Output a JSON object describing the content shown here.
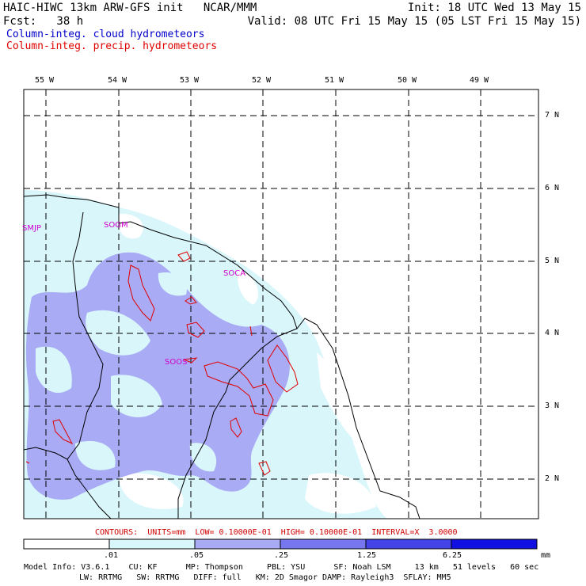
{
  "header": {
    "title_left": "HAIC-HIWC 13km ARW-GFS init   NCAR/MMM",
    "init": "Init: 18 UTC Wed 13 May 15",
    "fcst": "Fcst:   38 h",
    "valid": "Valid: 08 UTC Fri 15 May 15 (05 LST Fri 15 May 15)",
    "field1": "Column-integ. cloud hydrometeors",
    "field2": "Column-integ. precip. hydrometeors"
  },
  "colors": {
    "field1": "#0000cc",
    "field2": "#e00000",
    "contour": "#e00000",
    "station": "#d000d0",
    "fill_light": "#d9f6fb",
    "fill_mid": "#a9abf4",
    "fill_dark": "#7677ee"
  },
  "map": {
    "lon_labels": [
      "55 W",
      "54 W",
      "53 W",
      "52 W",
      "51 W",
      "50 W",
      "49 W"
    ],
    "lat_labels": [
      "7 N",
      "6 N",
      "5 N",
      "4 N",
      "3 N",
      "2 N"
    ],
    "stations": [
      "SMJP",
      "SOGM",
      "SOCA",
      "SOOS"
    ]
  },
  "contour_info": "CONTOURS:  UNITS=mm  LOW= 0.10000E-01  HIGH= 0.10000E-01  INTERVAL=X  3.0000",
  "colorbar": {
    "levels": [
      ".01",
      ".05",
      ".25",
      "1.25",
      "6.25"
    ],
    "units": "mm",
    "colors": [
      "#ffffff",
      "#d9f6fb",
      "#a9abf4",
      "#7677ee",
      "#4343e8",
      "#1010e0"
    ]
  },
  "footer": {
    "line1": "Model Info: V3.6.1    CU: KF      MP: Thompson     PBL: YSU      SF: Noah LSM     13 km   51 levels   60 sec",
    "line2": "LW: RRTMG   SW: RRTMG   DIFF: full   KM: 2D Smagor DAMP: Rayleigh3  SFLAY: MM5"
  }
}
